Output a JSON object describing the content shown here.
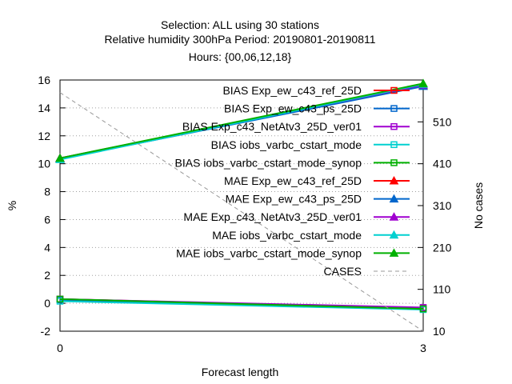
{
  "title_lines": [
    "Selection: ALL using    30 stations",
    "Relative humidity 300hPa   Period: 20190801-20190811",
    "Hours: {00,06,12,18}"
  ],
  "chart_data": {
    "type": "line",
    "xlabel": "Forecast length",
    "ylabel": "%",
    "y2label": "No cases",
    "xlim": [
      0,
      3
    ],
    "ylim": [
      -2,
      16
    ],
    "y2lim": [
      10,
      610
    ],
    "x_ticks": [
      0,
      3
    ],
    "y_ticks": [
      -2,
      0,
      2,
      4,
      6,
      8,
      10,
      12,
      14,
      16
    ],
    "y2_ticks": [
      10,
      110,
      210,
      310,
      410,
      510
    ],
    "grid": true,
    "legend_position": "top-right",
    "series": [
      {
        "name": "BIAS Exp_ew_c43_ref_25D",
        "color": "#ff0000",
        "marker": "square-open",
        "axis": "y1",
        "x": [
          0,
          3
        ],
        "values": [
          0.3,
          -0.35
        ]
      },
      {
        "name": "BIAS Exp_ew_c43_ps_25D",
        "color": "#0066cc",
        "marker": "square-open",
        "axis": "y1",
        "x": [
          0,
          3
        ],
        "values": [
          0.25,
          -0.4
        ]
      },
      {
        "name": "BIAS Exp_c43_NetAtv3_25D_ver01",
        "color": "#a000d0",
        "marker": "square-open",
        "axis": "y1",
        "x": [
          0,
          3
        ],
        "values": [
          0.3,
          -0.3
        ]
      },
      {
        "name": "BIAS iobs_varbc_cstart_mode",
        "color": "#00d0d0",
        "marker": "square-open",
        "axis": "y1",
        "x": [
          0,
          3
        ],
        "values": [
          0.15,
          -0.45
        ]
      },
      {
        "name": "BIAS iobs_varbc_cstart_mode_synop",
        "color": "#00b000",
        "marker": "square-open",
        "axis": "y1",
        "x": [
          0,
          3
        ],
        "values": [
          0.3,
          -0.4
        ]
      },
      {
        "name": "MAE Exp_ew_c43_ref_25D",
        "color": "#ff0000",
        "marker": "triangle-filled",
        "axis": "y1",
        "x": [
          0,
          3
        ],
        "values": [
          10.4,
          15.6
        ]
      },
      {
        "name": "MAE Exp_ew_c43_ps_25D",
        "color": "#0066cc",
        "marker": "triangle-filled",
        "axis": "y1",
        "x": [
          0,
          3
        ],
        "values": [
          10.35,
          15.55
        ]
      },
      {
        "name": "MAE Exp_c43_NetAtv3_25D_ver01",
        "color": "#a000d0",
        "marker": "triangle-filled",
        "axis": "y1",
        "x": [
          0,
          3
        ],
        "values": [
          10.4,
          15.65
        ]
      },
      {
        "name": "MAE iobs_varbc_cstart_mode",
        "color": "#00d0d0",
        "marker": "triangle-filled",
        "axis": "y1",
        "x": [
          0,
          3
        ],
        "values": [
          10.3,
          15.7
        ]
      },
      {
        "name": "MAE iobs_varbc_cstart_mode_synop",
        "color": "#00b000",
        "marker": "triangle-filled",
        "axis": "y1",
        "x": [
          0,
          3
        ],
        "values": [
          10.4,
          15.75
        ]
      },
      {
        "name": "CASES",
        "color": "#999999",
        "marker": "none",
        "dashed": true,
        "axis": "y2",
        "x": [
          0,
          3
        ],
        "values": [
          580,
          10
        ]
      }
    ]
  }
}
